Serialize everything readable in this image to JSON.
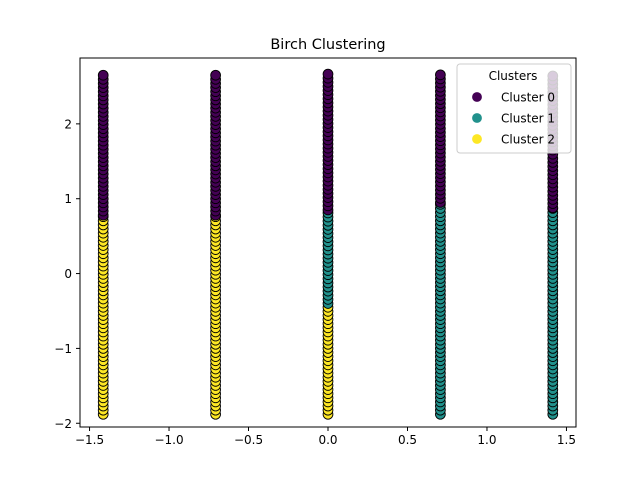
{
  "chart_data": {
    "type": "scatter",
    "title": "Birch Clustering",
    "xlabel": "",
    "ylabel": "",
    "xlim": [
      -1.56,
      1.56
    ],
    "ylim": [
      -2.05,
      2.88
    ],
    "xticks": [
      -1.5,
      -1.0,
      -0.5,
      0.0,
      0.5,
      1.0,
      1.5
    ],
    "xtick_labels": [
      "−1.5",
      "−1.0",
      "−0.5",
      "0.0",
      "0.5",
      "1.0",
      "1.5"
    ],
    "yticks": [
      -2,
      -1,
      0,
      1,
      2
    ],
    "ytick_labels": [
      "−2",
      "−1",
      "0",
      "1",
      "2"
    ],
    "grid": false,
    "legend": {
      "title": "Clusters",
      "placement": "upper-right",
      "entries": [
        {
          "label": "Cluster 0",
          "color": "#440154"
        },
        {
          "label": "Cluster 1",
          "color": "#21918c"
        },
        {
          "label": "Cluster 2",
          "color": "#fde725"
        }
      ]
    },
    "marker_edge_color": "#000000",
    "columns": [
      {
        "x": -1.414,
        "segments": [
          {
            "cluster": 2,
            "y_range": [
              -1.88,
              0.78
            ]
          },
          {
            "cluster": 0,
            "y_range": [
              0.78,
              2.67
            ]
          }
        ]
      },
      {
        "x": -0.707,
        "segments": [
          {
            "cluster": 2,
            "y_range": [
              -1.88,
              0.78
            ]
          },
          {
            "cluster": 0,
            "y_range": [
              0.78,
              2.67
            ]
          }
        ]
      },
      {
        "x": 0.0,
        "segments": [
          {
            "cluster": 2,
            "y_range": [
              -1.88,
              -0.4
            ]
          },
          {
            "cluster": 1,
            "y_range": [
              -0.4,
              0.85
            ]
          },
          {
            "cluster": 0,
            "y_range": [
              0.85,
              2.67
            ]
          }
        ]
      },
      {
        "x": 0.707,
        "segments": [
          {
            "cluster": 1,
            "y_range": [
              -1.88,
              0.95
            ]
          },
          {
            "cluster": 0,
            "y_range": [
              0.95,
              2.67
            ]
          }
        ]
      },
      {
        "x": 1.414,
        "segments": [
          {
            "cluster": 1,
            "y_range": [
              -1.88,
              0.88
            ]
          },
          {
            "cluster": 0,
            "y_range": [
              0.88,
              2.67
            ]
          }
        ]
      }
    ]
  }
}
